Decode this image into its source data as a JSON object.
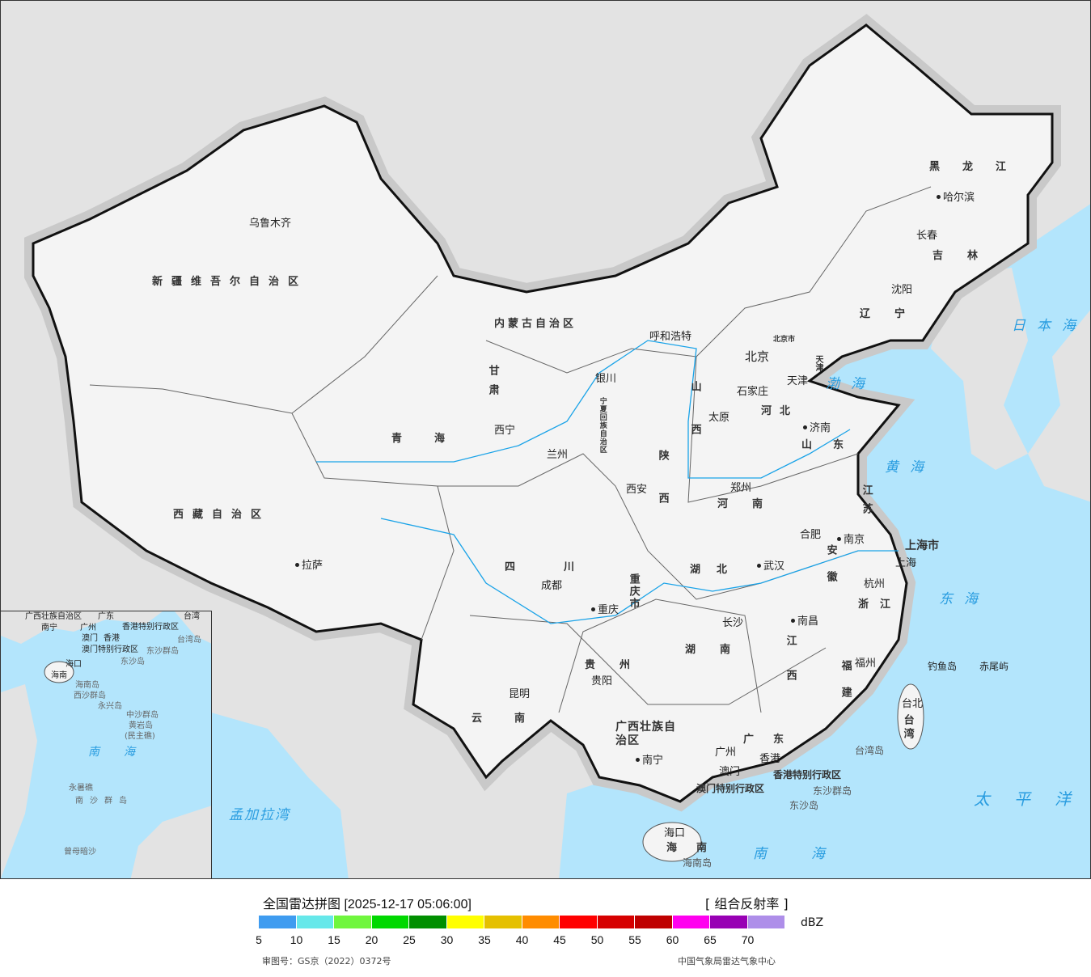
{
  "colors": {
    "land": "#f4f4f4",
    "neighbor": "#e3e3e3",
    "sea": "#b3e5fc",
    "border": "#111111",
    "river": "#1aa3e8"
  },
  "map": {
    "provinces": [
      "新疆维吾尔自治区",
      "西藏自治区",
      "青海",
      "甘肃",
      "内蒙古自治区",
      "黑龙江",
      "吉林",
      "辽宁",
      "河北",
      "山西",
      "陕西",
      "宁夏回族自治区",
      "四川",
      "重庆市",
      "云南",
      "贵州",
      "广西壮族自治区",
      "湖南",
      "湖北",
      "河南",
      "山东",
      "江苏",
      "安徽",
      "浙江",
      "江西",
      "福建",
      "广东",
      "海南",
      "台湾",
      "天津",
      "北京市",
      "上海市",
      "香港特别行政区",
      "澳门特别行政区"
    ],
    "cities": [
      "乌鲁木齐",
      "拉萨",
      "西宁",
      "兰州",
      "银川",
      "呼和浩特",
      "北京",
      "天津",
      "石家庄",
      "太原",
      "济南",
      "郑州",
      "西安",
      "成都",
      "重庆",
      "贵阳",
      "昆明",
      "南宁",
      "广州",
      "澳门",
      "香港",
      "海口",
      "长沙",
      "武汉",
      "南昌",
      "福州",
      "杭州",
      "上海",
      "南京",
      "合肥",
      "沈阳",
      "长春",
      "哈尔滨",
      "台北"
    ],
    "islands": [
      "钓鱼岛",
      "赤尾屿",
      "台湾岛",
      "东沙群岛",
      "东沙岛",
      "海南岛"
    ],
    "seas": [
      "日本海",
      "渤海",
      "黄海",
      "东海",
      "太平洋",
      "南海",
      "孟加拉湾"
    ],
    "inset_labels": [
      "广西壮族自治区",
      "南宁",
      "广东",
      "广州",
      "澳门",
      "香港",
      "香港特别行政区",
      "澳门特别行政区",
      "台湾",
      "台湾岛",
      "东沙群岛",
      "东沙岛",
      "海口",
      "海南",
      "海南岛",
      "西沙群岛",
      "永兴岛",
      "中沙群岛",
      "黄岩岛",
      "(民主礁)",
      "南海",
      "永暑礁",
      "南沙群岛",
      "曾母暗沙"
    ]
  },
  "footer": {
    "title": "全国雷达拼图 [2025-12-17 05:06:00]",
    "product": "[ 组合反射率 ]",
    "unit": "dBZ",
    "approval": "审图号：GS京（2022）0372号",
    "source": "中国气象局雷达气象中心",
    "legend": {
      "ticks": [
        "5",
        "10",
        "15",
        "20",
        "25",
        "30",
        "35",
        "40",
        "45",
        "50",
        "55",
        "60",
        "65",
        "70"
      ],
      "colors": [
        "#3f9cf0",
        "#66e8ea",
        "#70f63e",
        "#00d800",
        "#008f00",
        "#ffff00",
        "#e5c000",
        "#ff8c00",
        "#ff0000",
        "#d60000",
        "#bf0000",
        "#ff00ef",
        "#9800b4",
        "#ae8ee9"
      ]
    }
  }
}
